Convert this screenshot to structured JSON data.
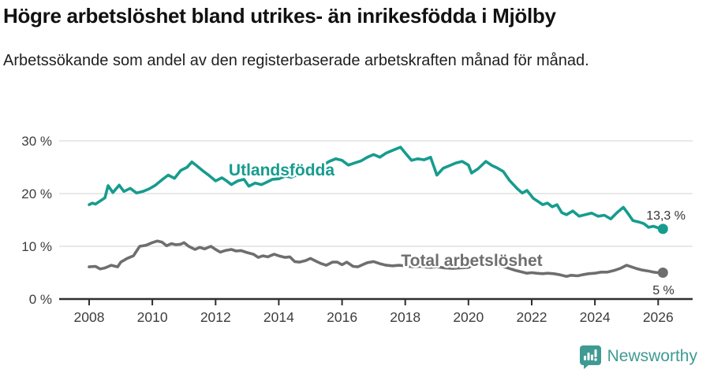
{
  "header": {
    "title": "Högre arbetslöshet bland utrikes- än inrikesfödda i Mjölby",
    "subtitle": "Arbetssökande som andel av den registerbaserade arbetskraften månad för månad."
  },
  "chart_data": {
    "type": "line",
    "title": "Högre arbetslöshet bland utrikes- än inrikesfödda i Mjölby",
    "subtitle": "Arbetssökande som andel av den registerbaserade arbetskraften månad för månad.",
    "x_unit": "year-month",
    "xlim": [
      2007.05,
      2027.1
    ],
    "ylim": [
      0,
      30
    ],
    "grid": "horizontal",
    "legend_position": "inline-labels",
    "y_ticks": [
      {
        "value": 0,
        "label": "0 %"
      },
      {
        "value": 10,
        "label": "10 %"
      },
      {
        "value": 20,
        "label": "20 %"
      },
      {
        "value": 30,
        "label": "30 %"
      }
    ],
    "x_ticks": [
      {
        "value": 2008,
        "label": "2008"
      },
      {
        "value": 2010,
        "label": "2010"
      },
      {
        "value": 2012,
        "label": "2012"
      },
      {
        "value": 2014,
        "label": "2014"
      },
      {
        "value": 2016,
        "label": "2016"
      },
      {
        "value": 2018,
        "label": "2018"
      },
      {
        "value": 2020,
        "label": "2020"
      },
      {
        "value": 2022,
        "label": "2022"
      },
      {
        "value": 2024,
        "label": "2024"
      },
      {
        "value": 2026,
        "label": "2026"
      }
    ],
    "series": [
      {
        "name": "Utlandsfödda",
        "color": "#169C8E",
        "end_label": "13,3 %",
        "end_value": 13.3,
        "points": [
          [
            2008.0,
            17.9
          ],
          [
            2008.1,
            18.2
          ],
          [
            2008.2,
            18.0
          ],
          [
            2008.35,
            18.6
          ],
          [
            2008.5,
            19.2
          ],
          [
            2008.6,
            21.5
          ],
          [
            2008.75,
            20.2
          ],
          [
            2008.95,
            21.6
          ],
          [
            2009.1,
            20.4
          ],
          [
            2009.3,
            21.0
          ],
          [
            2009.5,
            20.1
          ],
          [
            2009.7,
            20.4
          ],
          [
            2009.9,
            20.9
          ],
          [
            2010.1,
            21.6
          ],
          [
            2010.3,
            22.6
          ],
          [
            2010.5,
            23.5
          ],
          [
            2010.7,
            22.9
          ],
          [
            2010.9,
            24.4
          ],
          [
            2011.1,
            25.0
          ],
          [
            2011.25,
            26.0
          ],
          [
            2011.4,
            25.3
          ],
          [
            2011.6,
            24.3
          ],
          [
            2011.8,
            23.4
          ],
          [
            2012.0,
            22.4
          ],
          [
            2012.2,
            23.0
          ],
          [
            2012.35,
            22.4
          ],
          [
            2012.5,
            21.7
          ],
          [
            2012.7,
            22.4
          ],
          [
            2012.9,
            22.7
          ],
          [
            2013.05,
            21.4
          ],
          [
            2013.25,
            22.0
          ],
          [
            2013.45,
            21.7
          ],
          [
            2013.6,
            22.1
          ],
          [
            2013.8,
            22.7
          ],
          [
            2014.0,
            22.8
          ],
          [
            2014.2,
            23.3
          ],
          [
            2014.4,
            23.1
          ],
          [
            2014.6,
            23.6
          ],
          [
            2014.8,
            24.2
          ],
          [
            2015.0,
            24.6
          ],
          [
            2015.2,
            25.1
          ],
          [
            2015.4,
            25.4
          ],
          [
            2015.6,
            26.1
          ],
          [
            2015.8,
            26.6
          ],
          [
            2016.0,
            26.3
          ],
          [
            2016.2,
            25.4
          ],
          [
            2016.4,
            25.8
          ],
          [
            2016.6,
            26.2
          ],
          [
            2016.8,
            26.9
          ],
          [
            2017.0,
            27.4
          ],
          [
            2017.2,
            26.9
          ],
          [
            2017.4,
            27.7
          ],
          [
            2017.6,
            28.2
          ],
          [
            2017.85,
            28.8
          ],
          [
            2018.0,
            27.7
          ],
          [
            2018.2,
            26.3
          ],
          [
            2018.4,
            26.6
          ],
          [
            2018.6,
            26.4
          ],
          [
            2018.8,
            26.9
          ],
          [
            2019.0,
            23.5
          ],
          [
            2019.2,
            24.8
          ],
          [
            2019.4,
            25.3
          ],
          [
            2019.6,
            25.8
          ],
          [
            2019.8,
            26.1
          ],
          [
            2020.0,
            25.4
          ],
          [
            2020.1,
            23.9
          ],
          [
            2020.3,
            24.7
          ],
          [
            2020.55,
            26.1
          ],
          [
            2020.75,
            25.3
          ],
          [
            2020.9,
            24.9
          ],
          [
            2021.1,
            24.2
          ],
          [
            2021.3,
            22.5
          ],
          [
            2021.55,
            20.9
          ],
          [
            2021.7,
            20.1
          ],
          [
            2021.85,
            20.6
          ],
          [
            2022.05,
            19.1
          ],
          [
            2022.2,
            18.5
          ],
          [
            2022.35,
            17.9
          ],
          [
            2022.5,
            18.2
          ],
          [
            2022.65,
            17.5
          ],
          [
            2022.8,
            17.9
          ],
          [
            2022.95,
            16.4
          ],
          [
            2023.1,
            16.0
          ],
          [
            2023.3,
            16.7
          ],
          [
            2023.5,
            15.7
          ],
          [
            2023.7,
            16.0
          ],
          [
            2023.9,
            16.3
          ],
          [
            2024.1,
            15.7
          ],
          [
            2024.3,
            15.9
          ],
          [
            2024.5,
            15.2
          ],
          [
            2024.7,
            16.4
          ],
          [
            2024.9,
            17.4
          ],
          [
            2025.05,
            16.2
          ],
          [
            2025.2,
            14.9
          ],
          [
            2025.4,
            14.6
          ],
          [
            2025.55,
            14.3
          ],
          [
            2025.7,
            13.6
          ],
          [
            2025.85,
            13.8
          ],
          [
            2026.0,
            13.5
          ],
          [
            2026.15,
            13.3
          ]
        ]
      },
      {
        "name": "Total arbetslöshet",
        "color": "#6E6E6E",
        "end_label": "5 %",
        "end_value": 5,
        "points": [
          [
            2008.0,
            6.1
          ],
          [
            2008.2,
            6.2
          ],
          [
            2008.35,
            5.7
          ],
          [
            2008.5,
            5.9
          ],
          [
            2008.7,
            6.4
          ],
          [
            2008.9,
            6.1
          ],
          [
            2009.0,
            7.0
          ],
          [
            2009.2,
            7.7
          ],
          [
            2009.4,
            8.2
          ],
          [
            2009.6,
            10.0
          ],
          [
            2009.8,
            10.2
          ],
          [
            2010.0,
            10.7
          ],
          [
            2010.15,
            11.0
          ],
          [
            2010.3,
            10.8
          ],
          [
            2010.45,
            10.1
          ],
          [
            2010.6,
            10.5
          ],
          [
            2010.75,
            10.3
          ],
          [
            2010.9,
            10.4
          ],
          [
            2011.0,
            10.7
          ],
          [
            2011.15,
            10.0
          ],
          [
            2011.35,
            9.4
          ],
          [
            2011.5,
            9.8
          ],
          [
            2011.65,
            9.5
          ],
          [
            2011.85,
            10.0
          ],
          [
            2012.0,
            9.4
          ],
          [
            2012.15,
            8.9
          ],
          [
            2012.3,
            9.2
          ],
          [
            2012.5,
            9.4
          ],
          [
            2012.65,
            9.1
          ],
          [
            2012.8,
            9.2
          ],
          [
            2013.0,
            8.8
          ],
          [
            2013.2,
            8.5
          ],
          [
            2013.35,
            7.9
          ],
          [
            2013.5,
            8.2
          ],
          [
            2013.65,
            8.0
          ],
          [
            2013.85,
            8.5
          ],
          [
            2014.0,
            8.2
          ],
          [
            2014.2,
            7.9
          ],
          [
            2014.35,
            8.0
          ],
          [
            2014.5,
            7.1
          ],
          [
            2014.65,
            7.0
          ],
          [
            2014.85,
            7.3
          ],
          [
            2015.0,
            7.7
          ],
          [
            2015.2,
            7.1
          ],
          [
            2015.35,
            6.7
          ],
          [
            2015.5,
            6.4
          ],
          [
            2015.7,
            7.0
          ],
          [
            2015.85,
            7.0
          ],
          [
            2016.0,
            6.5
          ],
          [
            2016.15,
            7.0
          ],
          [
            2016.35,
            6.2
          ],
          [
            2016.5,
            6.1
          ],
          [
            2016.65,
            6.5
          ],
          [
            2016.8,
            6.9
          ],
          [
            2017.0,
            7.1
          ],
          [
            2017.2,
            6.7
          ],
          [
            2017.4,
            6.4
          ],
          [
            2017.6,
            6.3
          ],
          [
            2017.8,
            6.4
          ],
          [
            2018.0,
            6.3
          ],
          [
            2018.25,
            6.1
          ],
          [
            2018.5,
            6.2
          ],
          [
            2018.75,
            6.0
          ],
          [
            2019.0,
            6.1
          ],
          [
            2019.25,
            5.9
          ],
          [
            2019.5,
            5.8
          ],
          [
            2019.75,
            5.9
          ],
          [
            2020.0,
            6.0
          ],
          [
            2020.25,
            6.8
          ],
          [
            2020.5,
            7.0
          ],
          [
            2020.75,
            6.6
          ],
          [
            2021.0,
            6.3
          ],
          [
            2021.25,
            5.9
          ],
          [
            2021.5,
            5.4
          ],
          [
            2021.7,
            5.1
          ],
          [
            2021.85,
            4.9
          ],
          [
            2022.0,
            5.0
          ],
          [
            2022.15,
            4.9
          ],
          [
            2022.35,
            4.8
          ],
          [
            2022.5,
            4.9
          ],
          [
            2022.7,
            4.8
          ],
          [
            2022.9,
            4.6
          ],
          [
            2023.1,
            4.3
          ],
          [
            2023.25,
            4.5
          ],
          [
            2023.45,
            4.4
          ],
          [
            2023.6,
            4.6
          ],
          [
            2023.8,
            4.8
          ],
          [
            2024.0,
            4.9
          ],
          [
            2024.2,
            5.1
          ],
          [
            2024.4,
            5.1
          ],
          [
            2024.6,
            5.4
          ],
          [
            2024.8,
            5.8
          ],
          [
            2025.0,
            6.4
          ],
          [
            2025.15,
            6.1
          ],
          [
            2025.3,
            5.8
          ],
          [
            2025.5,
            5.5
          ],
          [
            2025.7,
            5.3
          ],
          [
            2025.85,
            5.1
          ],
          [
            2026.0,
            5.0
          ],
          [
            2026.15,
            5.0
          ]
        ]
      }
    ]
  },
  "footer": {
    "brand": "Newsworthy"
  },
  "colors": {
    "accent_teal": "#169C8E",
    "line_gray": "#6E6E6E",
    "logo_teal": "#3F9A94",
    "gridline": "#e1e1e1",
    "axis": "#2e2e2e"
  }
}
